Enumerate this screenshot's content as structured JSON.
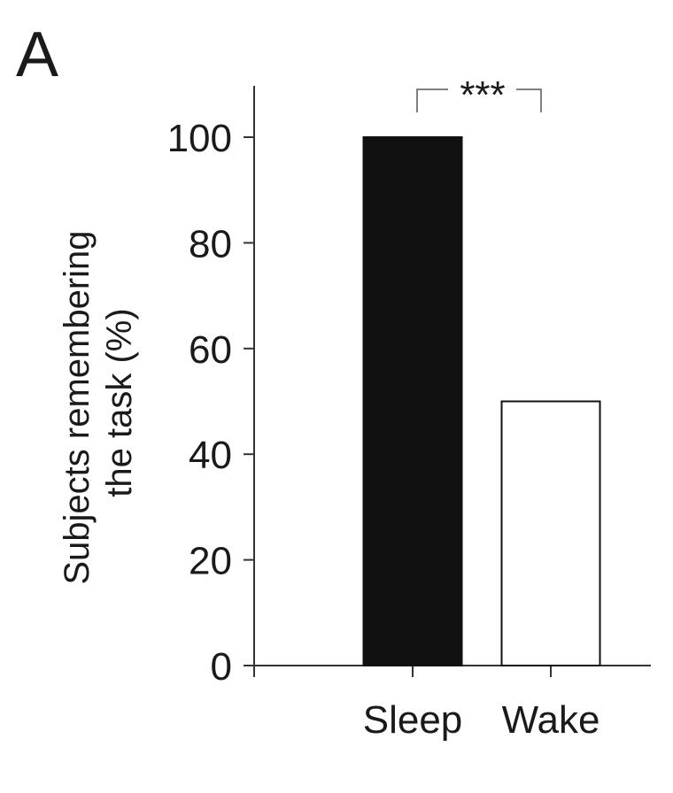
{
  "panel_label": "A",
  "chart_data": {
    "type": "bar",
    "categories": [
      "Sleep",
      "Wake"
    ],
    "values": [
      100,
      50
    ],
    "bar_colors": [
      "#111111",
      "#ffffff"
    ],
    "title": "",
    "xlabel": "",
    "ylabel_lines": [
      "Subjects remembering",
      "the task (%)"
    ],
    "ylim": [
      0,
      110
    ],
    "yticks": [
      0,
      20,
      40,
      60,
      80,
      100
    ],
    "grid": false,
    "legend": "none",
    "annotations": [
      {
        "type": "significance-bracket",
        "between": [
          "Sleep",
          "Wake"
        ],
        "text": "***"
      }
    ]
  }
}
